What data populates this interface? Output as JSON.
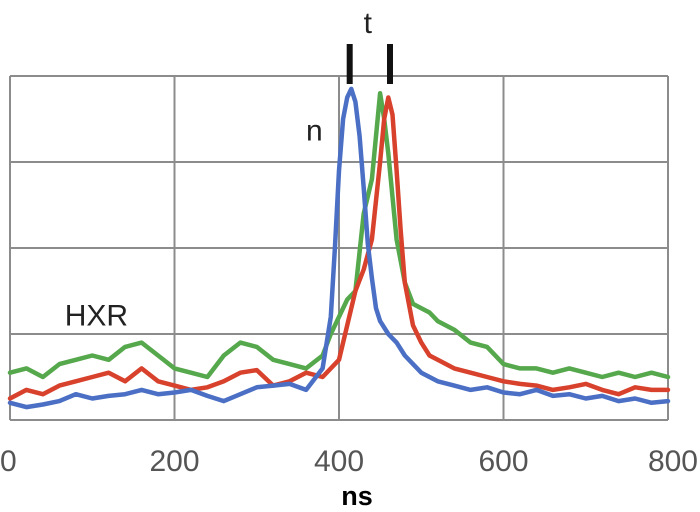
{
  "chart_data": {
    "type": "line",
    "xlabel": "ns",
    "xlim": [
      0,
      800
    ],
    "ylim": [
      0,
      4
    ],
    "x_ticks": [
      "0",
      "200",
      "400",
      "600",
      "800"
    ],
    "y_ticks": [
      0,
      1,
      2,
      3,
      4
    ],
    "grid": true,
    "legend": "none",
    "annotations": [
      {
        "text": "t",
        "x": 435,
        "y": 4.5
      },
      {
        "text": "n",
        "x": 370,
        "y": 3.25
      },
      {
        "text": "HXR",
        "x": 105,
        "y": 1.1
      }
    ],
    "markers": [
      413,
      462
    ],
    "series": [
      {
        "color": "#4a6fc4",
        "x": [
          0,
          20,
          40,
          60,
          80,
          100,
          120,
          140,
          160,
          180,
          200,
          220,
          240,
          260,
          280,
          300,
          320,
          340,
          360,
          380,
          390,
          395,
          400,
          405,
          410,
          415,
          420,
          425,
          430,
          435,
          440,
          445,
          450,
          460,
          470,
          480,
          490,
          500,
          510,
          520,
          540,
          560,
          580,
          600,
          620,
          640,
          660,
          680,
          700,
          720,
          740,
          760,
          780,
          800
        ],
        "y": [
          0.2,
          0.15,
          0.18,
          0.22,
          0.3,
          0.25,
          0.28,
          0.3,
          0.35,
          0.3,
          0.32,
          0.35,
          0.28,
          0.22,
          0.3,
          0.38,
          0.4,
          0.42,
          0.35,
          0.6,
          1.2,
          2.0,
          2.9,
          3.5,
          3.75,
          3.85,
          3.7,
          3.3,
          2.7,
          2.05,
          1.65,
          1.3,
          1.15,
          1.0,
          0.9,
          0.75,
          0.65,
          0.55,
          0.5,
          0.45,
          0.4,
          0.35,
          0.38,
          0.32,
          0.3,
          0.35,
          0.28,
          0.3,
          0.25,
          0.28,
          0.22,
          0.25,
          0.2,
          0.22
        ]
      },
      {
        "color": "#d8412c",
        "x": [
          0,
          20,
          40,
          60,
          80,
          100,
          120,
          140,
          160,
          180,
          200,
          220,
          240,
          260,
          280,
          300,
          320,
          340,
          360,
          380,
          400,
          410,
          420,
          430,
          440,
          450,
          455,
          460,
          465,
          470,
          475,
          480,
          490,
          500,
          510,
          520,
          540,
          560,
          580,
          600,
          620,
          640,
          660,
          680,
          700,
          720,
          740,
          760,
          780,
          800
        ],
        "y": [
          0.25,
          0.35,
          0.3,
          0.4,
          0.45,
          0.5,
          0.55,
          0.45,
          0.6,
          0.45,
          0.4,
          0.35,
          0.38,
          0.45,
          0.55,
          0.58,
          0.4,
          0.45,
          0.55,
          0.5,
          0.7,
          1.1,
          1.5,
          1.75,
          2.1,
          3.0,
          3.5,
          3.75,
          3.55,
          2.9,
          2.2,
          1.6,
          1.1,
          0.9,
          0.75,
          0.7,
          0.6,
          0.55,
          0.5,
          0.45,
          0.42,
          0.4,
          0.35,
          0.38,
          0.42,
          0.35,
          0.3,
          0.38,
          0.35,
          0.35
        ]
      },
      {
        "color": "#56a84c",
        "x": [
          0,
          20,
          40,
          60,
          80,
          100,
          120,
          140,
          160,
          180,
          200,
          220,
          240,
          260,
          280,
          300,
          320,
          340,
          360,
          380,
          390,
          400,
          410,
          420,
          430,
          440,
          445,
          450,
          455,
          460,
          470,
          480,
          490,
          500,
          510,
          520,
          540,
          560,
          580,
          600,
          620,
          640,
          660,
          680,
          700,
          720,
          740,
          760,
          780,
          800
        ],
        "y": [
          0.55,
          0.6,
          0.5,
          0.65,
          0.7,
          0.75,
          0.7,
          0.85,
          0.9,
          0.75,
          0.6,
          0.55,
          0.5,
          0.75,
          0.9,
          0.85,
          0.7,
          0.65,
          0.6,
          0.75,
          1.0,
          1.2,
          1.4,
          1.5,
          2.4,
          2.8,
          3.3,
          3.8,
          3.5,
          3.1,
          2.1,
          1.6,
          1.35,
          1.3,
          1.25,
          1.15,
          1.05,
          0.9,
          0.85,
          0.65,
          0.6,
          0.6,
          0.55,
          0.6,
          0.55,
          0.5,
          0.55,
          0.5,
          0.55,
          0.5
        ]
      }
    ]
  }
}
